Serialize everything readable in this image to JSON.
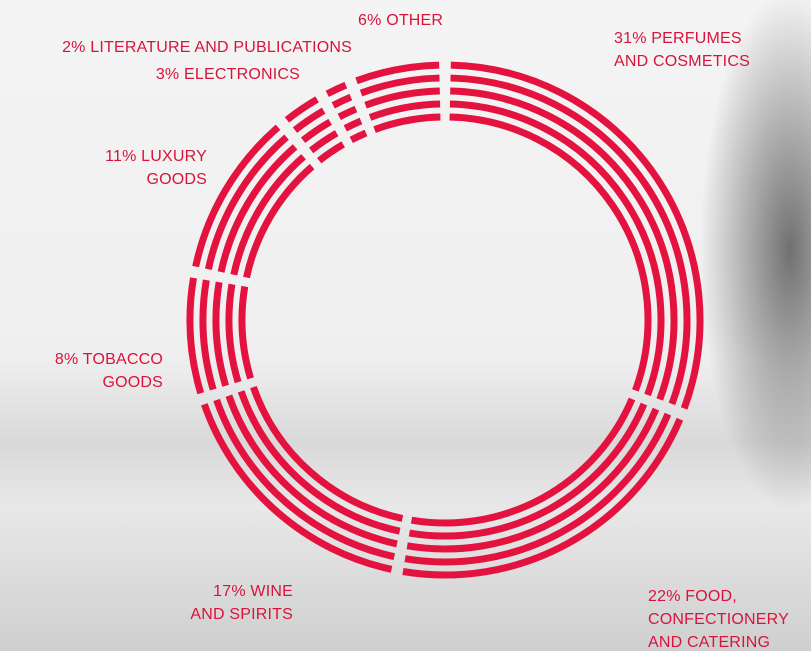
{
  "chart_data": {
    "type": "donut",
    "categories": [
      "PERFUMES AND COSMETICS",
      "FOOD, CONFECTIONERY AND CATERING",
      "WINE AND SPIRITS",
      "TOBACCO GOODS",
      "LUXURY GOODS",
      "ELECTRONICS",
      "LITERATURE AND PUBLICATIONS",
      "OTHER"
    ],
    "values": [
      31,
      22,
      17,
      8,
      11,
      3,
      2,
      6
    ],
    "value_labels": [
      "31%",
      "22%",
      "17%",
      "8%",
      "11%",
      "3%",
      "2%",
      "6%"
    ],
    "color": "#e3123f"
  }
}
